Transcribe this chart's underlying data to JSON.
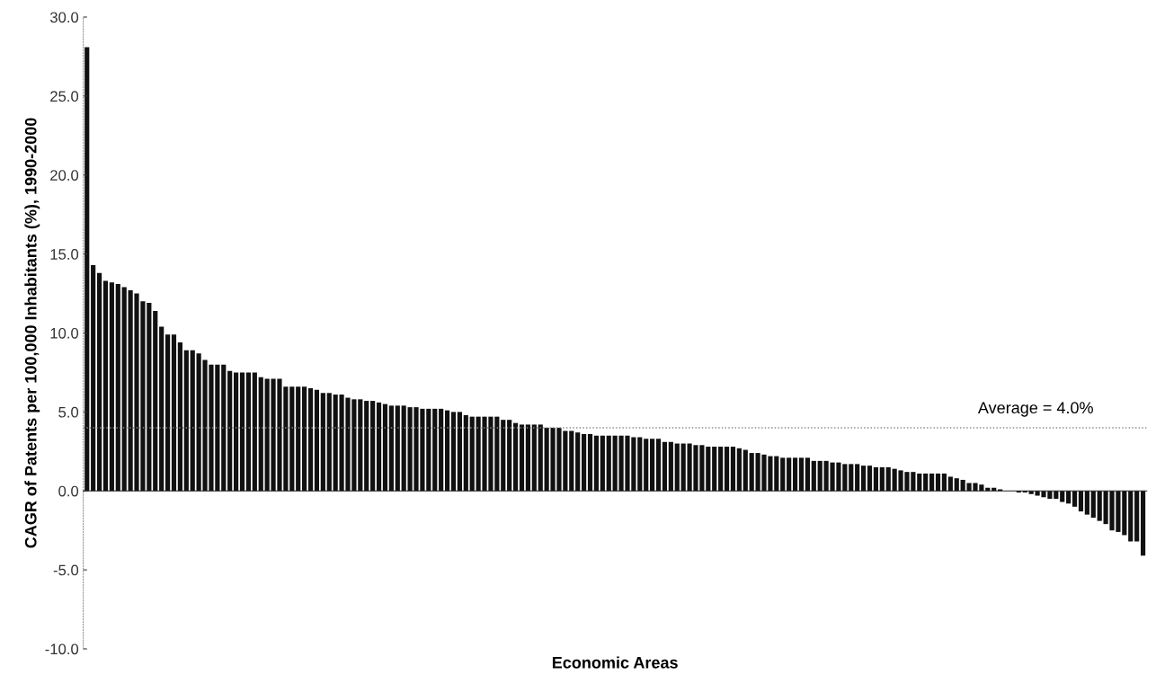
{
  "chart_data": {
    "type": "bar",
    "xlabel": "Economic Areas",
    "ylabel": "CAGR of Patents per 100,000 Inhabitants (%), 1990-2000",
    "categories": [
      null,
      null,
      null,
      null,
      null,
      null,
      null,
      null,
      null,
      null,
      null,
      null,
      null,
      null,
      null,
      null,
      null,
      null,
      null,
      null,
      null,
      null,
      null,
      null,
      null,
      null,
      null,
      null,
      null,
      null,
      null,
      null,
      null,
      null,
      null,
      null,
      null,
      null,
      null,
      null,
      null,
      null,
      null,
      null,
      null,
      null,
      null,
      null,
      null,
      null,
      null,
      null,
      null,
      null,
      null,
      null,
      null,
      null,
      null,
      null,
      null,
      null,
      null,
      null,
      null,
      null,
      null,
      null,
      null,
      null,
      null,
      null,
      null,
      null,
      null,
      null,
      null,
      null,
      null,
      null,
      null,
      null,
      null,
      null,
      null,
      null,
      null,
      null,
      null,
      null,
      null,
      null,
      null,
      null,
      null,
      null,
      null,
      null,
      null,
      null,
      null,
      null,
      null,
      null,
      null,
      null,
      null,
      null,
      null,
      null,
      null,
      null,
      null,
      null,
      null,
      null,
      null,
      null,
      null,
      null,
      null,
      null,
      null,
      null,
      null,
      null,
      null,
      null,
      null,
      null,
      null,
      null,
      null,
      null,
      null,
      null,
      null,
      null,
      null,
      null,
      null,
      null,
      null,
      null,
      null,
      null,
      null,
      null,
      null,
      null,
      null,
      null,
      null,
      null,
      null,
      null,
      null,
      null,
      null,
      null,
      null,
      null,
      null,
      null,
      null,
      null,
      null,
      null,
      null,
      null,
      null
    ],
    "values": [
      28.1,
      14.3,
      13.8,
      13.3,
      13.2,
      13.1,
      12.9,
      12.7,
      12.5,
      12.0,
      11.9,
      11.4,
      10.4,
      9.9,
      9.9,
      9.4,
      8.9,
      8.9,
      8.7,
      8.3,
      8.0,
      8.0,
      8.0,
      7.6,
      7.5,
      7.5,
      7.5,
      7.5,
      7.2,
      7.1,
      7.1,
      7.1,
      6.6,
      6.6,
      6.6,
      6.6,
      6.5,
      6.4,
      6.2,
      6.2,
      6.1,
      6.1,
      5.9,
      5.8,
      5.8,
      5.7,
      5.7,
      5.6,
      5.5,
      5.4,
      5.4,
      5.4,
      5.3,
      5.3,
      5.2,
      5.2,
      5.2,
      5.2,
      5.1,
      5.0,
      5.0,
      4.8,
      4.7,
      4.7,
      4.7,
      4.7,
      4.7,
      4.5,
      4.5,
      4.3,
      4.2,
      4.2,
      4.2,
      4.2,
      4.0,
      4.0,
      4.0,
      3.8,
      3.8,
      3.7,
      3.6,
      3.6,
      3.5,
      3.5,
      3.5,
      3.5,
      3.5,
      3.5,
      3.4,
      3.4,
      3.3,
      3.3,
      3.3,
      3.1,
      3.1,
      3.0,
      3.0,
      3.0,
      2.9,
      2.9,
      2.8,
      2.8,
      2.8,
      2.8,
      2.8,
      2.7,
      2.6,
      2.4,
      2.4,
      2.3,
      2.2,
      2.2,
      2.1,
      2.1,
      2.1,
      2.1,
      2.1,
      1.9,
      1.9,
      1.9,
      1.8,
      1.8,
      1.7,
      1.7,
      1.7,
      1.6,
      1.6,
      1.5,
      1.5,
      1.5,
      1.4,
      1.3,
      1.2,
      1.2,
      1.1,
      1.1,
      1.1,
      1.1,
      1.1,
      0.9,
      0.8,
      0.7,
      0.5,
      0.5,
      0.4,
      0.2,
      0.2,
      0.1,
      0.0,
      0.0,
      -0.1,
      -0.1,
      -0.2,
      -0.3,
      -0.4,
      -0.5,
      -0.5,
      -0.7,
      -0.8,
      -1.0,
      -1.3,
      -1.5,
      -1.7,
      -1.9,
      -2.1,
      -2.5,
      -2.6,
      -2.8,
      -3.2,
      -3.2,
      -4.1
    ],
    "color": "#111111",
    "ylim": [
      -10,
      30
    ],
    "yticks": [
      {
        "value": -10,
        "label": "-10.0"
      },
      {
        "value": -5,
        "label": "-5.0"
      },
      {
        "value": 0,
        "label": "0.0"
      },
      {
        "value": 5,
        "label": "5.0"
      },
      {
        "value": 10,
        "label": "10.0"
      },
      {
        "value": 15,
        "label": "15.0"
      },
      {
        "value": 20,
        "label": "20.0"
      },
      {
        "value": 25,
        "label": "25.0"
      },
      {
        "value": 30,
        "label": "30.0"
      }
    ],
    "ref_lines": [
      {
        "axis": "y",
        "value": 4.0,
        "label": "Average = 4.0%",
        "color": "#888888",
        "line_style": "dotted"
      }
    ],
    "legend": false
  }
}
